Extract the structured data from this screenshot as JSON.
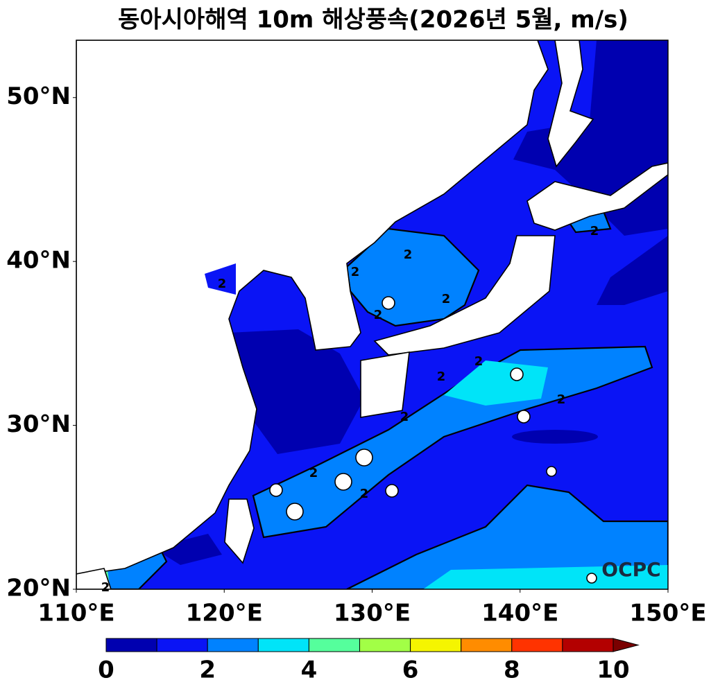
{
  "title": "동아시아해역 10m 해상풍속(2026년 5월, m/s)",
  "map": {
    "lon_range": [
      110,
      150
    ],
    "lat_range": [
      20,
      53.5
    ],
    "lon_ticks": [
      {
        "value": 110,
        "label": "110°E"
      },
      {
        "value": 120,
        "label": "120°E"
      },
      {
        "value": 130,
        "label": "130°E"
      },
      {
        "value": 140,
        "label": "140°E"
      },
      {
        "value": 150,
        "label": "150°E"
      }
    ],
    "lat_ticks": [
      {
        "value": 20,
        "label": "20°N"
      },
      {
        "value": 30,
        "label": "30°N"
      },
      {
        "value": 40,
        "label": "40°N"
      },
      {
        "value": 50,
        "label": "50°N"
      }
    ],
    "contour_label": "2",
    "watermark": "OCPC"
  },
  "colorbar": {
    "levels": [
      0,
      1,
      2,
      3,
      4,
      5,
      6,
      7,
      8,
      9,
      10
    ],
    "ticks": [
      0,
      2,
      4,
      6,
      8,
      10
    ],
    "colors": [
      "#0000b0",
      "#0a14f5",
      "#0082ff",
      "#00e4f8",
      "#55ff9c",
      "#a2ff46",
      "#f5f500",
      "#ff8c00",
      "#ff3300",
      "#b30000"
    ],
    "extend": "max",
    "extend_color": "#7a0000"
  }
}
